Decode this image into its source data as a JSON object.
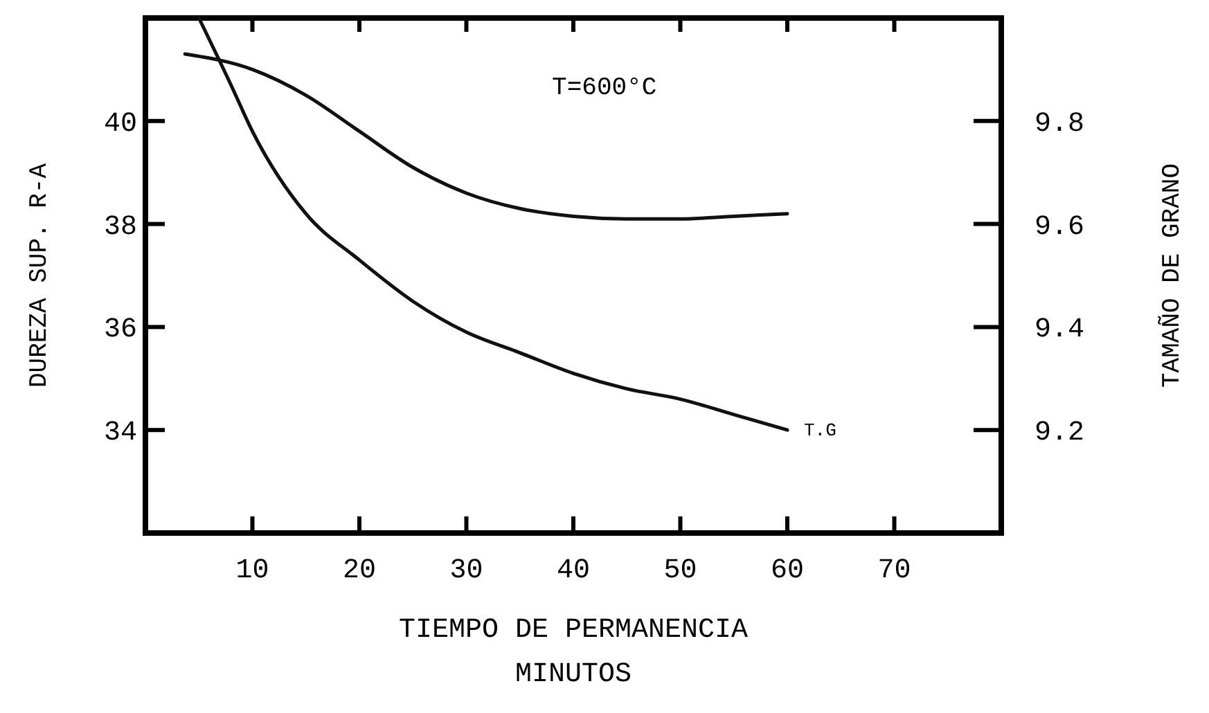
{
  "chart_data": {
    "type": "line",
    "xlabel": "TIEMPO DE PERMANENCIA\nMINUTOS",
    "ylabel": "DUREZA SUP. R-A",
    "y2label": "TAMAÑO DE GRANO",
    "annotations": [
      "T=600°C"
    ],
    "xlim": [
      0,
      80
    ],
    "xticks": [
      10,
      20,
      30,
      40,
      50,
      60,
      70
    ],
    "ylim": [
      32,
      42
    ],
    "yticks": [
      34,
      36,
      38,
      40
    ],
    "y2lim": [
      9.0,
      10.0
    ],
    "y2ticks": [
      {
        "value": 9.2,
        "label": "9.2"
      },
      {
        "value": 9.4,
        "label": "9.4"
      },
      {
        "value": 9.6,
        "label": "9.6"
      },
      {
        "value": 9.8,
        "label": "9.8"
      }
    ],
    "grid": false,
    "marker": "none",
    "line_style": "solid",
    "series": [
      {
        "color": "#111111",
        "x": [
          3.7,
          10,
          15,
          20,
          25,
          30,
          35,
          40,
          45,
          50,
          55,
          60
        ],
        "values": [
          41.3,
          41.0,
          40.5,
          39.8,
          39.1,
          38.6,
          38.3,
          38.15,
          38.1,
          38.1,
          38.15,
          38.2
        ]
      },
      {
        "name": "T.G",
        "axis": "y2",
        "color": "#111111",
        "x": [
          5,
          8,
          10,
          15,
          20,
          25,
          30,
          35,
          40,
          45,
          50,
          55,
          60
        ],
        "values": [
          10.0,
          9.87,
          9.78,
          9.62,
          9.53,
          9.45,
          9.39,
          9.35,
          9.31,
          9.28,
          9.26,
          9.23,
          9.2
        ]
      }
    ]
  }
}
